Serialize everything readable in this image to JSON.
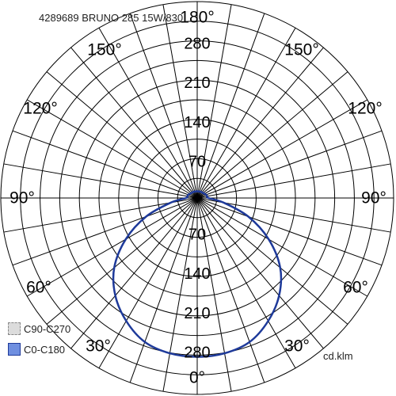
{
  "chart_data": {
    "type": "polar",
    "title": "4289689 BRUNO 285 15W/830",
    "units": "cd.klm",
    "radial_ticks": [
      70,
      140,
      210,
      280
    ],
    "radial_max": 350,
    "angle_labels": [
      {
        "label": "180°",
        "angle": 180
      },
      {
        "label": "150°",
        "angle": 150
      },
      {
        "label": "150°",
        "angle": -150
      },
      {
        "label": "120°",
        "angle": 120
      },
      {
        "label": "120°",
        "angle": -120
      },
      {
        "label": "90°",
        "angle": 90
      },
      {
        "label": "90°",
        "angle": -90
      },
      {
        "label": "60°",
        "angle": 60
      },
      {
        "label": "60°",
        "angle": -60
      },
      {
        "label": "30°",
        "angle": 30
      },
      {
        "label": "30°",
        "angle": -30
      },
      {
        "label": "0°",
        "angle": 0
      }
    ],
    "legend": [
      {
        "name": "C90-C270",
        "color": "#cfcfcf"
      },
      {
        "name": "C0-C180",
        "color": "#1e3a9a"
      }
    ],
    "series": [
      {
        "name": "C0-C180",
        "color": "#1e3a9a",
        "angles": [
          0,
          10,
          20,
          30,
          40,
          50,
          60,
          70,
          80,
          90,
          100,
          110,
          120,
          130,
          140,
          150,
          160,
          170,
          180
        ],
        "values": [
          283,
          281,
          273,
          253,
          227,
          193,
          147,
          97,
          48,
          20,
          18,
          17,
          15,
          14,
          13,
          13,
          12,
          12,
          12
        ]
      }
    ]
  }
}
